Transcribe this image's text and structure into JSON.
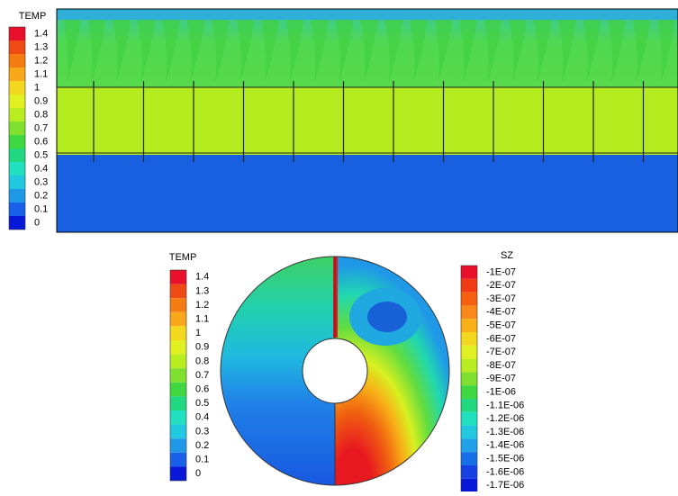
{
  "top_legend": {
    "title": "TEMP",
    "labels": [
      "1.4",
      "1.3",
      "1.2",
      "1.1",
      "1",
      "0.9",
      "0.8",
      "0.7",
      "0.6",
      "0.5",
      "0.4",
      "0.3",
      "0.2",
      "0.1",
      "0"
    ]
  },
  "bottom_legend": {
    "title": "TEMP",
    "labels": [
      "1.4",
      "1.3",
      "1.2",
      "1.1",
      "1",
      "0.9",
      "0.8",
      "0.7",
      "0.6",
      "0.5",
      "0.4",
      "0.3",
      "0.2",
      "0.1",
      "0"
    ]
  },
  "sz_legend": {
    "title": "SZ",
    "labels": [
      "-1E-07",
      "-2E-07",
      "-3E-07",
      "-4E-07",
      "-5E-07",
      "-6E-07",
      "-7E-07",
      "-8E-07",
      "-9E-07",
      "-1E-06",
      "-1.1E-06",
      "-1.2E-06",
      "-1.3E-06",
      "-1.4E-06",
      "-1.5E-06",
      "-1.6E-06",
      "-1.7E-06"
    ]
  }
}
